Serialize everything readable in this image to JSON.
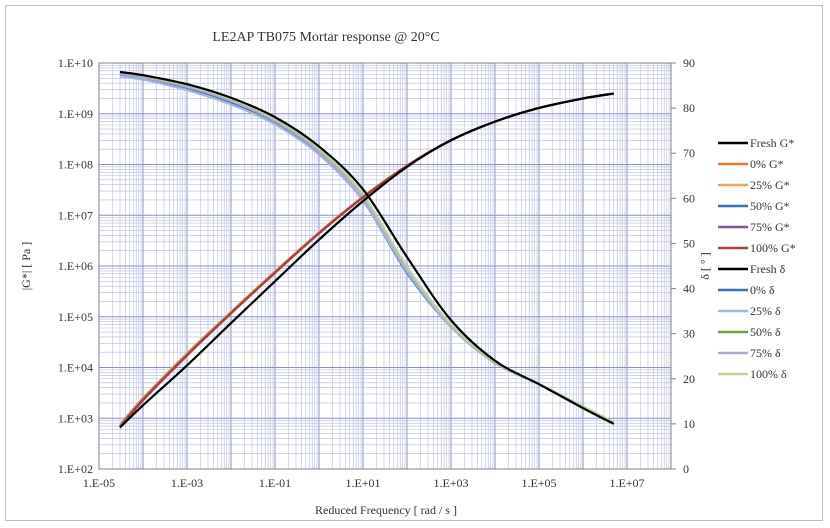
{
  "chart_data": {
    "type": "line",
    "title": "LE2AP TB075 Mortar response @ 20°C",
    "xlabel": "Reduced Frequency [ rad / s ]",
    "ylabel_left": "|G*| [ Pa ]",
    "ylabel_right": "δ [ ° ]",
    "x_scale": "log",
    "xlim": [
      1e-05,
      100000000
    ],
    "ylim_left": [
      100,
      10000000000
    ],
    "ylim_right": [
      0,
      90
    ],
    "x_ticks": [
      "1.E-05",
      "1.E-03",
      "1.E-01",
      "1.E+01",
      "1.E+03",
      "1.E+05",
      "1.E+07"
    ],
    "y_left_ticks": [
      "1.E+02",
      "1.E+03",
      "1.E+04",
      "1.E+05",
      "1.E+06",
      "1.E+07",
      "1.E+08",
      "1.E+09",
      "1.E+10"
    ],
    "y_right_ticks": [
      "0",
      "10",
      "20",
      "30",
      "40",
      "50",
      "60",
      "70",
      "80",
      "90"
    ],
    "grid": true,
    "legend_position": "right",
    "series": [
      {
        "name": "Fresh G*",
        "axis": "left",
        "color": "#000000",
        "x": [
          3e-05,
          0.0001,
          0.001,
          0.01,
          0.1,
          1,
          10,
          100,
          1000,
          10000,
          100000,
          1000000,
          5000000
        ],
        "y": [
          660,
          1800,
          11000,
          75000,
          500000,
          3300000,
          19000000,
          90000000,
          300000000,
          700000000,
          1300000000,
          2000000000,
          2500000000
        ]
      },
      {
        "name": "0% G*",
        "axis": "left",
        "color": "#e07b39",
        "x": [
          3e-05,
          0.0001,
          0.001,
          0.01,
          0.1,
          1,
          10,
          100,
          1000,
          10000,
          100000,
          1000000,
          5000000
        ],
        "y": [
          700,
          2400,
          18000,
          120000,
          750000,
          4500000,
          23000000,
          95000000,
          300000000,
          700000000,
          1300000000,
          2000000000,
          2500000000
        ]
      },
      {
        "name": "25% G*",
        "axis": "left",
        "color": "#f4a24f",
        "x": [
          3e-05,
          0.0001,
          0.001,
          0.01,
          0.1,
          1,
          10,
          100,
          1000,
          10000,
          100000,
          1000000,
          5000000
        ],
        "y": [
          750,
          2500,
          19000,
          125000,
          780000,
          4600000,
          23000000,
          95000000,
          300000000,
          700000000,
          1300000000,
          2000000000,
          2500000000
        ]
      },
      {
        "name": "50% G*",
        "axis": "left",
        "color": "#3b6fb6",
        "x": [
          3e-05,
          0.0001,
          0.001,
          0.01,
          0.1,
          1,
          10,
          100,
          1000,
          10000,
          100000,
          1000000,
          5000000
        ],
        "y": [
          680,
          2300,
          17500,
          118000,
          740000,
          4400000,
          22500000,
          94000000,
          300000000,
          700000000,
          1300000000,
          2000000000,
          2500000000
        ]
      },
      {
        "name": "75% G*",
        "axis": "left",
        "color": "#7b5a9e",
        "x": [
          3e-05,
          0.0001,
          0.001,
          0.01,
          0.1,
          1,
          10,
          100,
          1000,
          10000,
          100000,
          1000000,
          5000000
        ],
        "y": [
          690,
          2350,
          17800,
          119000,
          745000,
          4450000,
          22700000,
          94500000,
          300000000,
          700000000,
          1300000000,
          2000000000,
          2500000000
        ]
      },
      {
        "name": "100% G*",
        "axis": "left",
        "color": "#a6423a",
        "x": [
          3e-05,
          0.0001,
          0.001,
          0.01,
          0.1,
          1,
          10,
          100,
          1000,
          10000,
          100000,
          1000000,
          5000000
        ],
        "y": [
          650,
          2250,
          17200,
          116000,
          735000,
          4380000,
          22400000,
          94000000,
          300000000,
          700000000,
          1300000000,
          2000000000,
          2500000000
        ]
      },
      {
        "name": "Fresh δ",
        "axis": "right",
        "color": "#000000",
        "x": [
          3e-05,
          0.0001,
          0.001,
          0.01,
          0.1,
          1,
          10,
          100,
          1000,
          10000,
          100000,
          1000000,
          5000000
        ],
        "y": [
          88,
          87.3,
          85.3,
          82.3,
          78,
          71.5,
          62,
          47,
          33,
          24,
          18.8,
          13.5,
          10
        ]
      },
      {
        "name": "0% δ",
        "axis": "right",
        "color": "#3b6fb6",
        "x": [
          3e-05,
          0.0001,
          0.001,
          0.01,
          0.1,
          1,
          10,
          100,
          1000,
          10000,
          100000,
          1000000,
          5000000
        ],
        "y": [
          87.5,
          86.7,
          84.5,
          81.3,
          76.8,
          70,
          59.5,
          43.5,
          31.5,
          23.5,
          18.8,
          13.8,
          10.3
        ]
      },
      {
        "name": "25% δ",
        "axis": "right",
        "color": "#9fb8d8",
        "x": [
          3e-05,
          0.0001,
          0.001,
          0.01,
          0.1,
          1,
          10,
          100,
          1000,
          10000,
          100000,
          1000000,
          5000000
        ],
        "y": [
          87,
          86.3,
          84,
          80.8,
          76.4,
          69.7,
          59.5,
          43.8,
          31.5,
          23.5,
          18.8,
          13.8,
          10.3
        ]
      },
      {
        "name": "50% δ",
        "axis": "right",
        "color": "#76a13f",
        "x": [
          3e-05,
          0.0001,
          0.001,
          0.01,
          0.1,
          1,
          10,
          100,
          1000,
          10000,
          100000,
          1000000,
          5000000
        ],
        "y": [
          87.8,
          87,
          84.9,
          81.8,
          77.3,
          70.6,
          60.3,
          44.5,
          31.8,
          23.6,
          18.8,
          13.8,
          10.3
        ]
      },
      {
        "name": "75% δ",
        "axis": "right",
        "color": "#b6a6d2",
        "x": [
          3e-05,
          0.0001,
          0.001,
          0.01,
          0.1,
          1,
          10,
          100,
          1000,
          10000,
          100000,
          1000000,
          5000000
        ],
        "y": [
          87.6,
          86.8,
          84.7,
          81.6,
          77.1,
          70.4,
          60.1,
          44.3,
          31.7,
          23.6,
          18.8,
          13.8,
          10.3
        ]
      },
      {
        "name": "100% δ",
        "axis": "right",
        "color": "#b9d39a",
        "x": [
          3e-05,
          0.0001,
          0.001,
          0.01,
          0.1,
          1,
          10,
          100,
          1000,
          10000,
          100000,
          1000000,
          5000000
        ],
        "y": [
          88,
          87.2,
          85.1,
          82,
          77.6,
          71,
          60.8,
          44.8,
          32,
          23.7,
          18.8,
          13.8,
          10.3
        ]
      }
    ]
  }
}
